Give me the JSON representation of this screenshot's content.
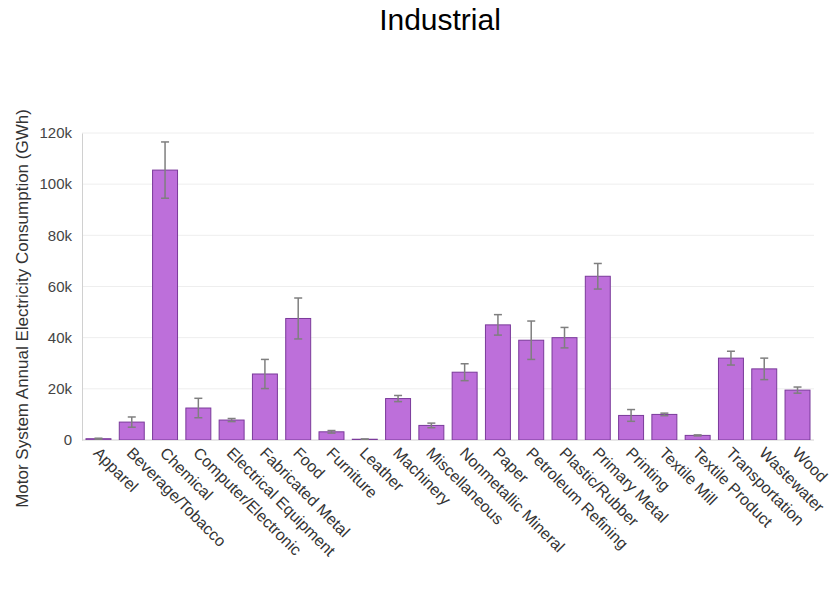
{
  "chart_data": {
    "type": "bar",
    "title": "Industrial",
    "y_label": "Motor System Annual Electricity Consumption (GWh)",
    "categories": [
      "Apparel",
      "Beverage/Tobacco",
      "Chemical",
      "Computer/Electronic",
      "Electrical Equipment",
      "Fabricated Metal",
      "Food",
      "Furniture",
      "Leather",
      "Machinery",
      "Miscellaneous",
      "Nonmetallic Mineral",
      "Paper",
      "Petroleum Refining",
      "Plastic/Rubber",
      "Primary Metal",
      "Printing",
      "Textile Mill",
      "Textile Product",
      "Transportation",
      "Wastewater",
      "Wood"
    ],
    "values": [
      500,
      7000,
      105500,
      12500,
      7800,
      25800,
      47500,
      3200,
      300,
      16200,
      5700,
      26500,
      45000,
      39000,
      40000,
      64000,
      9600,
      10000,
      1800,
      32000,
      27800,
      19500
    ],
    "errors": [
      200,
      2000,
      11000,
      3800,
      600,
      5700,
      8000,
      500,
      100,
      1200,
      900,
      3300,
      4000,
      7500,
      4000,
      5000,
      2300,
      500,
      200,
      2700,
      4200,
      1200
    ],
    "color": "#b967d8",
    "ylim": [
      0,
      120000
    ],
    "yticks": [
      0,
      {
        "value": 20000,
        "label": "20k"
      },
      {
        "value": 40000,
        "label": "40k"
      },
      {
        "value": 60000,
        "label": "60k"
      },
      {
        "value": 80000,
        "label": "80k"
      },
      {
        "value": 100000,
        "label": "100k"
      },
      {
        "value": 120000,
        "label": "120k"
      }
    ],
    "grid": true
  }
}
